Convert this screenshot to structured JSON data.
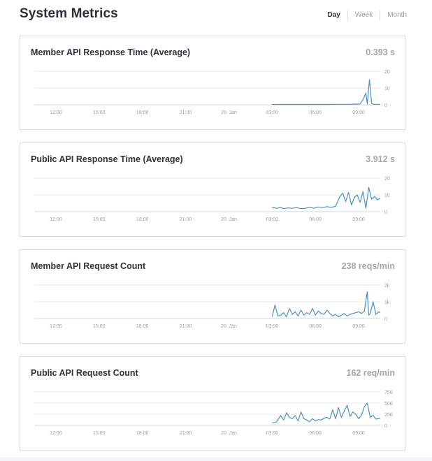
{
  "page": {
    "title": "System Metrics"
  },
  "range": {
    "tabs": [
      {
        "label": "Day"
      },
      {
        "label": "Week"
      },
      {
        "label": "Month"
      }
    ],
    "selected": "Day"
  },
  "colors": {
    "line": "#4a90c8",
    "grid": "#e9eaec",
    "axis_text": "#9a9ca1"
  },
  "panels": [
    {
      "title": "Member API Response Time (Average)",
      "value": "0.393 s"
    },
    {
      "title": "Public API Response Time (Average)",
      "value": "3.912 s"
    },
    {
      "title": "Member API Request Count",
      "value": "238 reqs/min"
    },
    {
      "title": "Public API Request Count",
      "value": "162 req/min"
    }
  ],
  "chart_data": [
    {
      "type": "line",
      "x_tick_labels": [
        "12:00",
        "15:00",
        "18:00",
        "21:00",
        "20. Jan",
        "03:00",
        "06:00",
        "09:00"
      ],
      "x_ticks": [
        1.5,
        4.5,
        7.5,
        10.5,
        13.5,
        16.5,
        19.5,
        22.5
      ],
      "x_range": [
        0,
        24
      ],
      "y_tick_labels": [
        "20",
        "10",
        "0"
      ],
      "y_ticks": [
        20,
        10,
        0
      ],
      "ylim": [
        0,
        20
      ],
      "x": [
        16.5,
        17.0,
        17.5,
        18.0,
        18.5,
        19.0,
        19.5,
        20.0,
        20.5,
        21.0,
        21.5,
        22.0,
        22.3,
        22.6,
        22.8,
        23.0,
        23.1,
        23.25,
        23.4,
        23.5,
        23.6,
        23.8,
        24.0
      ],
      "y": [
        0.2,
        0.2,
        0.2,
        0.2,
        0.2,
        0.2,
        0.2,
        0.2,
        0.2,
        0.3,
        0.3,
        0.3,
        0.4,
        0.5,
        3.0,
        7.0,
        0.5,
        15.0,
        0.8,
        0.4,
        0.3,
        0.3,
        0.3
      ]
    },
    {
      "type": "line",
      "x_tick_labels": [
        "12:00",
        "15:00",
        "18:00",
        "21:00",
        "20. Jan",
        "03:00",
        "06:00",
        "09:00"
      ],
      "x_ticks": [
        1.5,
        4.5,
        7.5,
        10.5,
        13.5,
        16.5,
        19.5,
        22.5
      ],
      "x_range": [
        0,
        24
      ],
      "y_tick_labels": [
        "20",
        "10",
        "0"
      ],
      "y_ticks": [
        20,
        10,
        0
      ],
      "ylim": [
        0,
        20
      ],
      "x": [
        16.5,
        16.8,
        17.1,
        17.3,
        17.6,
        17.9,
        18.2,
        18.5,
        18.8,
        19.1,
        19.4,
        19.7,
        20.0,
        20.3,
        20.6,
        20.9,
        21.2,
        21.4,
        21.6,
        21.8,
        22.0,
        22.2,
        22.4,
        22.6,
        22.8,
        23.0,
        23.2,
        23.4,
        23.6,
        23.8,
        24.0
      ],
      "y": [
        2.5,
        2.0,
        2.5,
        1.8,
        2.2,
        2.0,
        2.4,
        1.8,
        2.0,
        2.6,
        2.0,
        2.8,
        2.4,
        3.0,
        2.6,
        3.2,
        9.0,
        11.0,
        6.0,
        11.5,
        4.0,
        8.5,
        10.0,
        5.5,
        12.0,
        2.0,
        14.5,
        7.5,
        9.0,
        7.0,
        8.0
      ]
    },
    {
      "type": "line",
      "x_tick_labels": [
        "12:00",
        "15:00",
        "18:00",
        "21:00",
        "20. Jan",
        "03:00",
        "06:00",
        "09:00"
      ],
      "x_ticks": [
        1.5,
        4.5,
        7.5,
        10.5,
        13.5,
        16.5,
        19.5,
        22.5
      ],
      "x_range": [
        0,
        24
      ],
      "y_tick_labels": [
        "2k",
        "1k",
        "0"
      ],
      "y_ticks": [
        2000,
        1000,
        0
      ],
      "ylim": [
        0,
        2000
      ],
      "x": [
        16.5,
        16.7,
        16.9,
        17.1,
        17.3,
        17.5,
        17.7,
        17.9,
        18.1,
        18.3,
        18.5,
        18.7,
        18.9,
        19.1,
        19.3,
        19.5,
        19.7,
        19.9,
        20.1,
        20.3,
        20.5,
        20.7,
        20.9,
        21.1,
        21.3,
        21.5,
        21.7,
        21.9,
        22.1,
        22.3,
        22.5,
        22.7,
        22.9,
        23.1,
        23.2,
        23.3,
        23.5,
        23.7,
        23.9,
        24.0
      ],
      "y": [
        100,
        800,
        150,
        200,
        350,
        100,
        600,
        250,
        400,
        150,
        500,
        200,
        350,
        250,
        600,
        200,
        450,
        300,
        250,
        500,
        300,
        150,
        250,
        100,
        200,
        300,
        150,
        250,
        300,
        350,
        400,
        300,
        450,
        1600,
        200,
        300,
        1000,
        250,
        400,
        350
      ]
    },
    {
      "type": "line",
      "x_tick_labels": [
        "12:00",
        "15:00",
        "18:00",
        "21:00",
        "20. Jan",
        "03:00",
        "06:00",
        "09:00"
      ],
      "x_ticks": [
        1.5,
        4.5,
        7.5,
        10.5,
        13.5,
        16.5,
        19.5,
        22.5
      ],
      "x_range": [
        0,
        24
      ],
      "y_tick_labels": [
        "750",
        "500",
        "250",
        "0"
      ],
      "y_ticks": [
        750,
        500,
        250,
        0
      ],
      "ylim": [
        0,
        750
      ],
      "x": [
        16.5,
        16.8,
        17.1,
        17.3,
        17.5,
        17.7,
        17.9,
        18.1,
        18.3,
        18.5,
        18.7,
        18.9,
        19.1,
        19.3,
        19.5,
        19.7,
        19.9,
        20.1,
        20.3,
        20.5,
        20.7,
        20.9,
        21.1,
        21.3,
        21.5,
        21.7,
        21.9,
        22.1,
        22.3,
        22.5,
        22.7,
        22.9,
        23.1,
        23.3,
        23.5,
        23.7,
        24.0
      ],
      "y": [
        50,
        80,
        220,
        120,
        280,
        180,
        150,
        220,
        100,
        300,
        150,
        120,
        80,
        150,
        100,
        130,
        120,
        160,
        180,
        140,
        350,
        150,
        400,
        180,
        320,
        450,
        200,
        300,
        250,
        150,
        230,
        420,
        500,
        180,
        220,
        140,
        160
      ]
    }
  ]
}
